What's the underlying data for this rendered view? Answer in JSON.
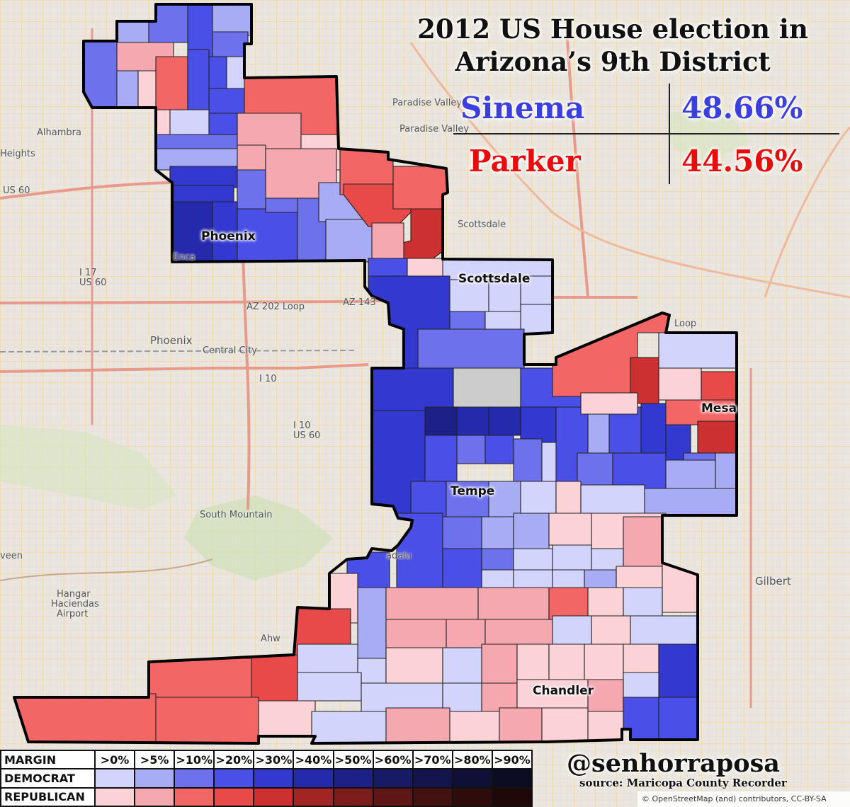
{
  "title": {
    "line1": "2012 US House election in",
    "line2": "Arizona’s 9th District"
  },
  "results": [
    {
      "name": "Sinema",
      "percent": "48.66%",
      "color": "#3b3fe0"
    },
    {
      "name": "Parker",
      "percent": "44.56%",
      "color": "#e80c0c"
    }
  ],
  "cities": {
    "phoenix_district": "Phoenix",
    "scottsdale": "Scottsdale",
    "tempe": "Tempe",
    "mesa": "Mesa",
    "chandler": "Chandler"
  },
  "basemap_labels": {
    "paradise_valley_1": "Paradise Valley",
    "paradise_valley_2": "Paradise Valley",
    "scottsdale_base": "Scottsdale",
    "phoenix_base": "Phoenix",
    "central_city": "Central City",
    "south_mountain": "South Mountain",
    "gilbert": "Gilbert",
    "alhambra": "Alhambra",
    "heights": "Heights",
    "us60_west": "US 60",
    "i17": "I 17",
    "us60_i17": "US 60",
    "az202": "AZ 202 Loop",
    "az143": "AZ 143",
    "i10": "I 10",
    "i10_us60": "I 10",
    "us60_south": "US 60",
    "hangar": "Hangar",
    "haciendas": "Haciendas",
    "airport": "Airport",
    "ahw": "Ahw",
    "encanto": "Enca",
    "guadalupe": "adalu",
    "loop": "Loop",
    "veen": "veen"
  },
  "legend": {
    "header_margin": "MARGIN",
    "header_democrat": "DEMOCRAT",
    "header_republican": "REPUBLICAN",
    "margins": [
      ">0%",
      ">5%",
      ">10%",
      ">20%",
      ">30%",
      ">40%",
      ">50%",
      ">60%",
      ">70%",
      ">80%",
      ">90%"
    ],
    "democrat_colors": [
      "#d2d4fb",
      "#a8acf4",
      "#6d72ec",
      "#4a4fe6",
      "#3338cf",
      "#2529ab",
      "#1d2187",
      "#181a66",
      "#14154c",
      "#101036",
      "#0c0c22"
    ],
    "republican_colors": [
      "#fbd2d6",
      "#f6a8b0",
      "#f26666",
      "#e84a4a",
      "#cc3030",
      "#a22424",
      "#7c1c1c",
      "#5e1616",
      "#441111",
      "#2e0c0c",
      "#1e0808"
    ]
  },
  "credit": {
    "handle": "@senhorraposa",
    "source": "source: Maricopa County Recorder",
    "osm": "© OpenStreetMap (and) contributors, CC-BY-SA"
  }
}
